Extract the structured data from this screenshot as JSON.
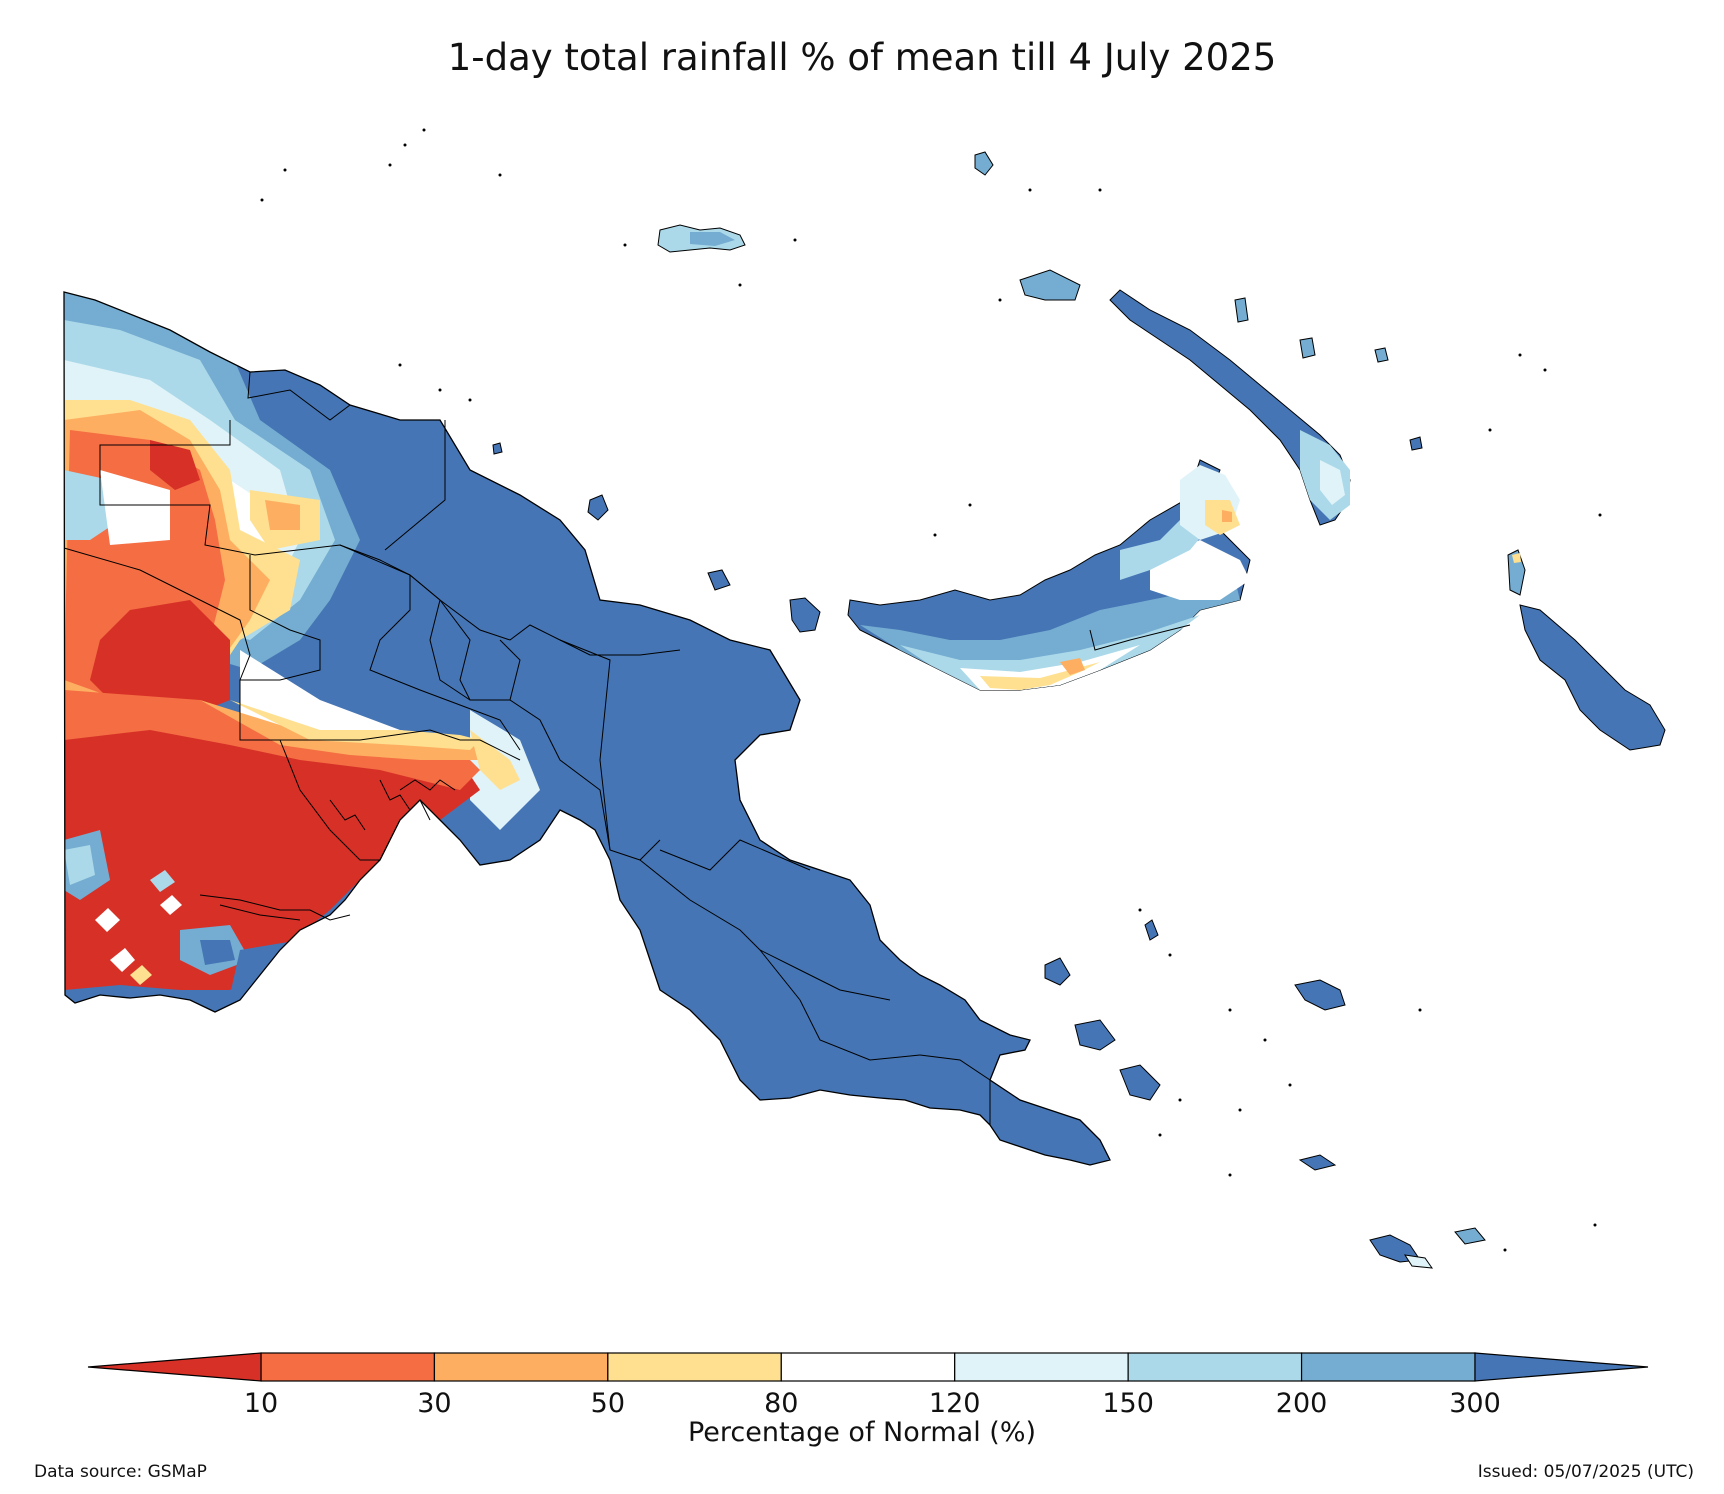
{
  "title": "1-day total rainfall % of mean till 4 July 2025",
  "colorbar": {
    "label": "Percentage of Normal (%)",
    "ticks": [
      "10",
      "30",
      "50",
      "80",
      "120",
      "150",
      "200",
      "300"
    ],
    "colors": [
      "#d73027",
      "#f46d43",
      "#fdae61",
      "#fee090",
      "#ffffff",
      "#e0f3f8",
      "#abd9e9",
      "#74add1",
      "#4575b4"
    ],
    "extend": "both"
  },
  "footer": {
    "source": "Data source: GSMaP",
    "issued": "Issued: 05/07/2025 (UTC)"
  },
  "legend_classes": {
    "below_10": "#d73027",
    "c10_30": "#f46d43",
    "c30_50": "#fdae61",
    "c50_80": "#fee090",
    "c80_120": "#ffffff",
    "c120_150": "#e0f3f8",
    "c150_200": "#abd9e9",
    "c200_300": "#74add1",
    "above_300": "#4575b4"
  }
}
